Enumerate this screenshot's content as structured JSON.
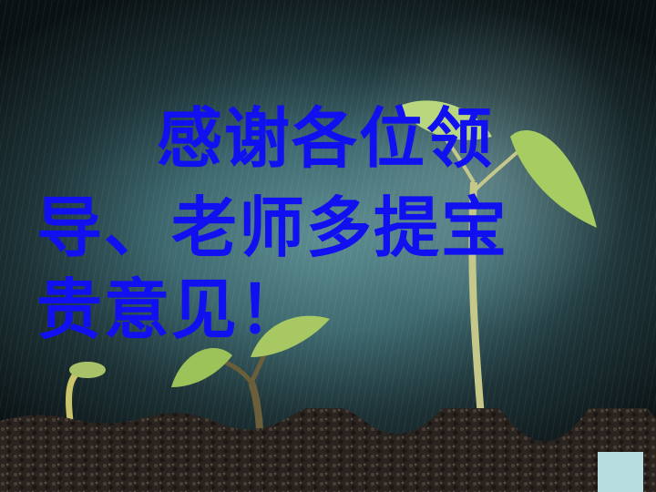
{
  "slide": {
    "text_lines": [
      "感谢各位领",
      "导、老师多提宝",
      "贵意见！"
    ]
  },
  "colors": {
    "text": "#1010f0",
    "leaf": "#9cc25a",
    "soil": "#2a2420",
    "corner_box": "#b7dde0"
  }
}
